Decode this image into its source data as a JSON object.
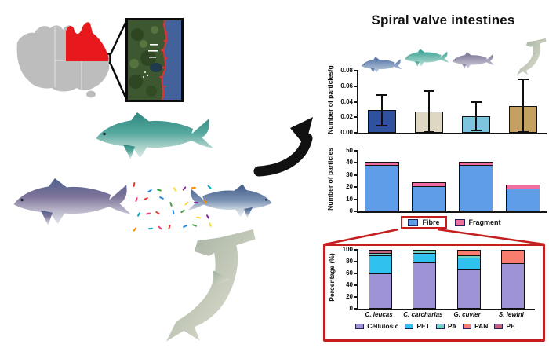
{
  "title": "Spiral valve intestines",
  "colors": {
    "callout_red": "#c41e1e",
    "queensland_red": "#e8191c",
    "australia_gray": "#bdbdbd",
    "inset_land_green": "#3d5731",
    "inset_ocean_blue": "#43619b",
    "inset_coast_red": "#e23333",
    "axis_black": "#151515"
  },
  "images": {
    "map": "australia-map-with-state-highlighted-red",
    "inset": "satellite-coastline-inset",
    "sharks_left": [
      "white-shark",
      "tiger-shark",
      "bull-shark",
      "hammerhead-shark"
    ],
    "shark_thumbnails": [
      "blue-shark",
      "teal-shark",
      "mauve-shark",
      "hammerhead-shark"
    ],
    "arrow": "curved-black-arrow",
    "particles": "colored-microplastic-particles"
  },
  "chart_data": [
    {
      "type": "bar",
      "title": "Spiral valve intestines",
      "categories": [
        "C. leucas",
        "C. carcharias",
        "G. cuvier",
        "S. lewini"
      ],
      "categories_shown_as": "shark images above bars",
      "values": [
        0.029,
        0.027,
        0.021,
        0.034
      ],
      "error_upper": [
        0.049,
        0.054,
        0.04,
        0.069
      ],
      "error_lower": [
        0.009,
        0.001,
        0.003,
        0.001
      ],
      "bar_colors": [
        "#30519f",
        "#ddd7c3",
        "#7fc4de",
        "#c5a063"
      ],
      "xlabel": "",
      "ylabel": "Number of particles/g",
      "ylim": [
        0,
        0.08
      ],
      "yticks": [
        "0.00",
        "0.02",
        "0.04",
        "0.06",
        "0.08"
      ],
      "grid": false
    },
    {
      "type": "stacked-bar",
      "categories": [
        "C. leucas",
        "C. carcharias",
        "G. cuvier",
        "S. lewini"
      ],
      "series": [
        {
          "name": "Fibre",
          "color": "#5f9de8",
          "values": [
            39,
            21,
            39,
            19
          ]
        },
        {
          "name": "Fragment",
          "color": "#f06fa0",
          "values": [
            2,
            3,
            2,
            3
          ]
        }
      ],
      "xlabel": "",
      "ylabel": "Number of particles",
      "ylim": [
        0,
        50
      ],
      "yticks": [
        "0",
        "10",
        "20",
        "30",
        "40",
        "50"
      ],
      "legend_position": "bottom",
      "legend_highlight": "Fibre",
      "grid": false
    },
    {
      "type": "stacked-bar",
      "categories": [
        "C. leucas",
        "C. carcharias",
        "G. cuvier",
        "S. lewini"
      ],
      "series": [
        {
          "name": "Cellulosic",
          "color": "#9f93d8",
          "values": [
            61,
            80,
            68,
            78
          ]
        },
        {
          "name": "PET",
          "color": "#2fc2ee",
          "values": [
            30,
            15,
            20,
            0
          ]
        },
        {
          "name": "PA",
          "color": "#72d2c4",
          "values": [
            4,
            5,
            3,
            0
          ]
        },
        {
          "name": "PAN",
          "color": "#f87d6e",
          "values": [
            0,
            0,
            9,
            22
          ]
        },
        {
          "name": "PE",
          "color": "#c2637e",
          "values": [
            5,
            0,
            0,
            0
          ]
        }
      ],
      "xlabel": "",
      "ylabel": "Percentage (%)",
      "ylim": [
        0,
        100
      ],
      "yticks": [
        "0",
        "20",
        "40",
        "60",
        "80",
        "100"
      ],
      "legend_position": "bottom",
      "grid": false
    }
  ]
}
